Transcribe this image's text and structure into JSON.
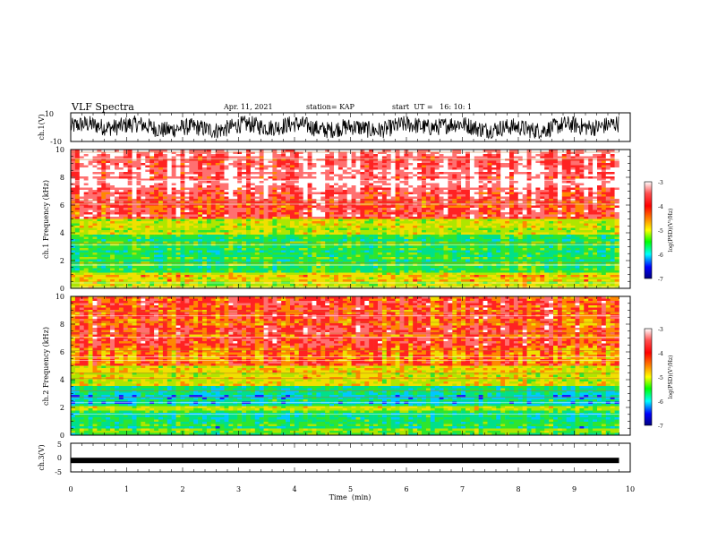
{
  "header": {
    "title": "VLF Spectra",
    "date": "Apr. 11, 2021",
    "station": "station= KAP",
    "start": "start  UT =   16: 10: 1"
  },
  "colors": {
    "spectrogram_scale": [
      "#1a1aff",
      "#00c8ff",
      "#00e08a",
      "#2ee62e",
      "#aee600",
      "#f0e000",
      "#ff8800",
      "#ff2222",
      "#ff7070",
      "#ffffff"
    ],
    "colorbar_scale": [
      "#ffffff",
      "#ff4040",
      "#ff0000",
      "#ff8000",
      "#ffff00",
      "#00ff00",
      "#00ffff",
      "#0000ff",
      "#000080"
    ],
    "trace": "#000000"
  },
  "chart_data": [
    {
      "type": "line",
      "name": "ch1-waveform",
      "ylabel": "ch.1(V)",
      "ylim": [
        -10,
        10
      ],
      "yticks": [
        "10",
        "-10"
      ],
      "x_range_min": [
        0,
        9.8
      ],
      "noise_amplitude_v": 6
    },
    {
      "type": "heatmap",
      "name": "ch1-spectrogram",
      "ylabel": "ch.1 Frequency (kHz)",
      "ylim": [
        0,
        10
      ],
      "yticks": [
        "0",
        "2",
        "4",
        "6",
        "8",
        "10"
      ],
      "bands_khz_to_level": [
        [
          0,
          0.5,
          0.45
        ],
        [
          0.5,
          1.2,
          0.55
        ],
        [
          1.2,
          3.8,
          0.32
        ],
        [
          3.8,
          5.0,
          0.5
        ],
        [
          5.0,
          7.0,
          0.78
        ],
        [
          7.0,
          10.0,
          0.88
        ]
      ],
      "colorbar": {
        "label": "log(PSD)(V²/Hz)",
        "min": -7,
        "max": -3,
        "ticks": [
          "-3",
          "-4",
          "-5",
          "-6",
          "-7"
        ]
      }
    },
    {
      "type": "heatmap",
      "name": "ch2-spectrogram",
      "ylabel": "ch.2 Frequency (kHz)",
      "ylim": [
        0,
        10
      ],
      "yticks": [
        "0",
        "2",
        "4",
        "6",
        "8",
        "10"
      ],
      "bands_khz_to_level": [
        [
          0,
          0.5,
          0.4
        ],
        [
          0.5,
          1.8,
          0.3
        ],
        [
          1.8,
          2.1,
          0.45
        ],
        [
          2.1,
          3.6,
          0.22
        ],
        [
          3.6,
          5.0,
          0.55
        ],
        [
          5.0,
          6.5,
          0.68
        ],
        [
          6.5,
          10.0,
          0.74
        ]
      ],
      "colorbar": {
        "label": "log(PSD)(V²/Hz)",
        "min": -7,
        "max": -3,
        "ticks": [
          "-3",
          "-4",
          "-5",
          "-6",
          "-7"
        ]
      }
    },
    {
      "type": "line",
      "name": "ch3-waveform",
      "ylabel": "ch.3(V)",
      "ylim": [
        -5,
        5
      ],
      "yticks": [
        "5",
        "0",
        "-5"
      ],
      "level_v": -1,
      "x_range_min": [
        0,
        9.8
      ]
    }
  ],
  "xaxis": {
    "label": "Time  (min)",
    "ticks": [
      "0",
      "1",
      "2",
      "3",
      "4",
      "5",
      "6",
      "7",
      "8",
      "9",
      "10"
    ],
    "range_min": [
      0,
      10
    ]
  }
}
